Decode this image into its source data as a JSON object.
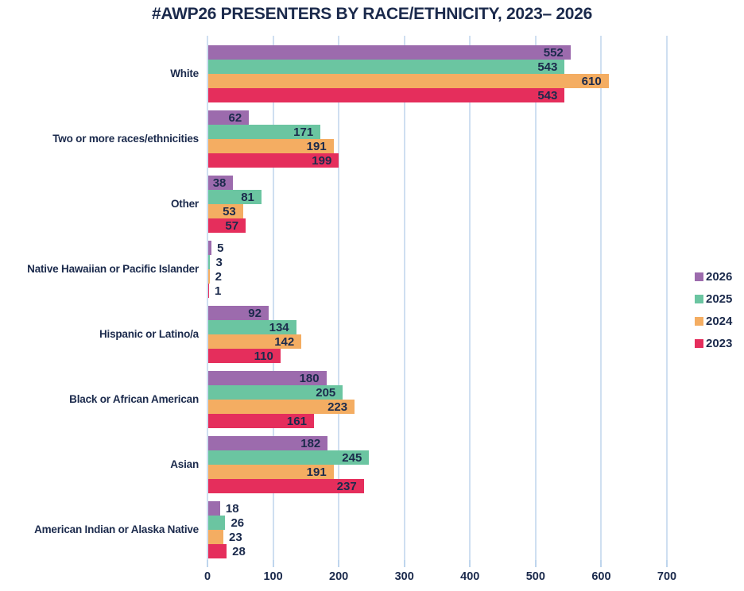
{
  "chart_data": {
    "type": "bar",
    "orientation": "horizontal",
    "title": "#AWP26 PRESENTERS BY RACE/ETHNICITY, 2023– 2026",
    "categories": [
      "White",
      "Two or more races/ethnicities",
      "Other",
      "Native Hawaiian or Pacific Islander",
      "Hispanic or Latino/a",
      "Black or African American",
      "Asian",
      "American Indian or Alaska Native"
    ],
    "series": [
      {
        "name": "2026",
        "color": "#9c6bad",
        "values": [
          552,
          62,
          38,
          5,
          92,
          180,
          182,
          18
        ]
      },
      {
        "name": "2025",
        "color": "#6bc5a1",
        "values": [
          543,
          171,
          81,
          3,
          134,
          205,
          245,
          26
        ]
      },
      {
        "name": "2024",
        "color": "#f4ad62",
        "values": [
          610,
          191,
          53,
          2,
          142,
          223,
          191,
          23
        ]
      },
      {
        "name": "2023",
        "color": "#e52e5c",
        "values": [
          543,
          199,
          57,
          1,
          110,
          161,
          237,
          28
        ]
      }
    ],
    "x_axis": {
      "min": 0,
      "max": 700,
      "ticks": [
        0,
        100,
        200,
        300,
        400,
        500,
        600,
        700
      ]
    },
    "legend": {
      "position": "right",
      "entries": [
        "2026",
        "2025",
        "2024",
        "2023"
      ]
    },
    "grid": true,
    "value_labels": true
  },
  "style": {
    "text_color": "#1b2a4c",
    "grid_color": "#cfdff1",
    "tick_color": "#bed5ed",
    "background": "#ffffff"
  }
}
